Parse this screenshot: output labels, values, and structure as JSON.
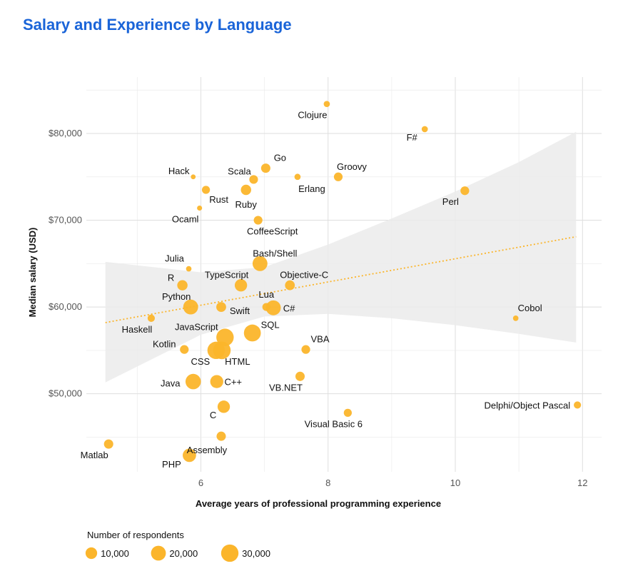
{
  "chart_data": {
    "type": "scatter",
    "title": "Salary and Experience by Language",
    "xlabel": "Average years of professional programming experience",
    "ylabel": "Median salary (USD)",
    "xlim": [
      4.2,
      12.3
    ],
    "ylim": [
      41000,
      86500
    ],
    "xticks": [
      6,
      8,
      10,
      12
    ],
    "xtick_labels": [
      "6",
      "8",
      "10",
      "12"
    ],
    "yticks": [
      50000,
      60000,
      70000,
      80000
    ],
    "ytick_labels": [
      "$50,000",
      "$60,000",
      "$70,000",
      "$80,000"
    ],
    "grid": true,
    "point_color": "#fbb52b",
    "trend_color": "#fbb52b",
    "band_color": "#ebebeb",
    "trend": {
      "x": [
        4.5,
        11.9
      ],
      "y": [
        58200,
        68100
      ]
    },
    "confidence_band": {
      "x": [
        4.5,
        6.0,
        7.0,
        8.0,
        9.0,
        10.0,
        11.0,
        11.9
      ],
      "upper": [
        65200,
        64000,
        64600,
        67200,
        70200,
        73300,
        76700,
        80200
      ],
      "lower": [
        51300,
        56800,
        58900,
        59200,
        58700,
        57900,
        56900,
        55900
      ]
    },
    "points": [
      {
        "name": "Clojure",
        "x": 7.98,
        "y": 83400,
        "respondents": 1000
      },
      {
        "name": "F#",
        "x": 9.52,
        "y": 80500,
        "respondents": 1000
      },
      {
        "name": "Hack",
        "x": 5.88,
        "y": 75000,
        "respondents": 200
      },
      {
        "name": "Go",
        "x": 7.02,
        "y": 76000,
        "respondents": 5000
      },
      {
        "name": "Scala",
        "x": 6.83,
        "y": 74700,
        "respondents": 4000
      },
      {
        "name": "Erlang",
        "x": 7.52,
        "y": 75000,
        "respondents": 1000
      },
      {
        "name": "Groovy",
        "x": 8.16,
        "y": 75000,
        "respondents": 4000
      },
      {
        "name": "Rust",
        "x": 6.08,
        "y": 73500,
        "respondents": 3000
      },
      {
        "name": "Ruby",
        "x": 6.71,
        "y": 73500,
        "respondents": 7000
      },
      {
        "name": "Perl",
        "x": 10.15,
        "y": 73400,
        "respondents": 4000
      },
      {
        "name": "Ocaml",
        "x": 5.98,
        "y": 71400,
        "respondents": 300
      },
      {
        "name": "CoffeeScript",
        "x": 6.9,
        "y": 70000,
        "respondents": 4000
      },
      {
        "name": "Bash/Shell",
        "x": 6.93,
        "y": 65000,
        "respondents": 20000
      },
      {
        "name": "Julia",
        "x": 5.81,
        "y": 64400,
        "respondents": 500
      },
      {
        "name": "TypeScript",
        "x": 6.63,
        "y": 62500,
        "respondents": 12000
      },
      {
        "name": "Objective-C",
        "x": 7.4,
        "y": 62500,
        "respondents": 6000
      },
      {
        "name": "R",
        "x": 5.71,
        "y": 62500,
        "respondents": 7000
      },
      {
        "name": "Python",
        "x": 5.84,
        "y": 60000,
        "respondents": 20000
      },
      {
        "name": "Swift",
        "x": 6.32,
        "y": 60000,
        "respondents": 6000
      },
      {
        "name": "Lua",
        "x": 7.03,
        "y": 60000,
        "respondents": 3000
      },
      {
        "name": "C#",
        "x": 7.14,
        "y": 59900,
        "respondents": 20000
      },
      {
        "name": "Cobol",
        "x": 10.95,
        "y": 58700,
        "respondents": 500
      },
      {
        "name": "Haskell",
        "x": 5.22,
        "y": 58700,
        "respondents": 2000
      },
      {
        "name": "JavaScript",
        "x": 6.38,
        "y": 56500,
        "respondents": 30000
      },
      {
        "name": "SQL",
        "x": 6.81,
        "y": 57000,
        "respondents": 28000
      },
      {
        "name": "Kotlin",
        "x": 5.74,
        "y": 55100,
        "respondents": 4000
      },
      {
        "name": "VBA",
        "x": 7.65,
        "y": 55100,
        "respondents": 4000
      },
      {
        "name": "CSS",
        "x": 6.24,
        "y": 55000,
        "respondents": 30000
      },
      {
        "name": "HTML",
        "x": 6.33,
        "y": 55000,
        "respondents": 31000
      },
      {
        "name": "VB.NET",
        "x": 7.56,
        "y": 52000,
        "respondents": 5000
      },
      {
        "name": "Java",
        "x": 5.88,
        "y": 51400,
        "respondents": 22000
      },
      {
        "name": "C++",
        "x": 6.25,
        "y": 51400,
        "respondents": 14000
      },
      {
        "name": "C",
        "x": 6.36,
        "y": 48500,
        "respondents": 12000
      },
      {
        "name": "Visual Basic 6",
        "x": 8.31,
        "y": 47800,
        "respondents": 3000
      },
      {
        "name": "Delphi/Object Pascal",
        "x": 11.92,
        "y": 48700,
        "respondents": 2000
      },
      {
        "name": "Assembly",
        "x": 6.32,
        "y": 45100,
        "respondents": 5000
      },
      {
        "name": "Matlab",
        "x": 4.55,
        "y": 44200,
        "respondents": 5000
      },
      {
        "name": "PHP",
        "x": 5.82,
        "y": 42900,
        "respondents": 15000
      }
    ],
    "legend": {
      "title": "Number of respondents",
      "placement": "bottom-left",
      "items": [
        {
          "label": "10,000",
          "respondents": 10000
        },
        {
          "label": "20,000",
          "respondents": 20000
        },
        {
          "label": "30,000",
          "respondents": 30000
        }
      ]
    }
  }
}
